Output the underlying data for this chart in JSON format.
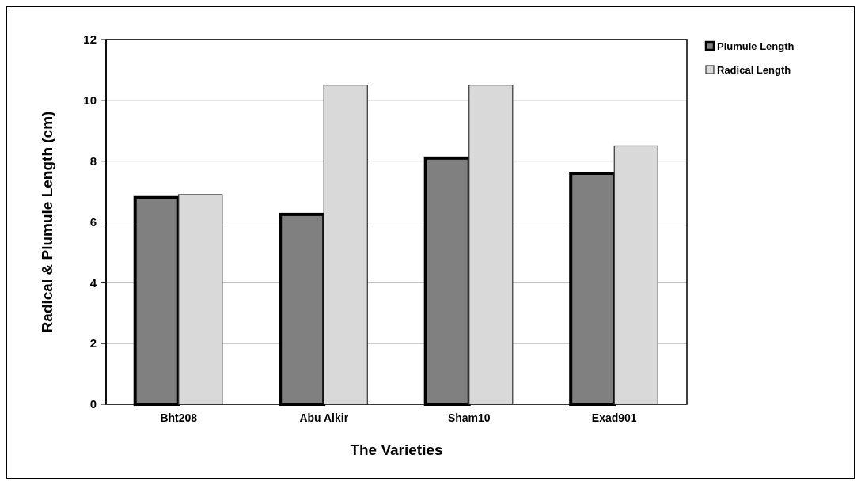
{
  "chart_data": {
    "type": "bar",
    "xlabel": "The Varieties",
    "ylabel": "Radical & Plumule Length (cm)",
    "categories": [
      "Bht208",
      "Abu Alkir",
      "Sham10",
      "Exad901"
    ],
    "series": [
      {
        "name": "Plumule Length",
        "color": "#808080",
        "values": [
          6.8,
          6.25,
          8.1,
          7.6
        ]
      },
      {
        "name": "Radical Length",
        "color": "#d9d9d9",
        "values": [
          6.9,
          10.5,
          10.5,
          8.5
        ]
      }
    ],
    "ylim": [
      0,
      12
    ],
    "yticks": [
      0,
      2,
      4,
      6,
      8,
      10,
      12
    ],
    "grid": "y",
    "legend": "top right"
  }
}
